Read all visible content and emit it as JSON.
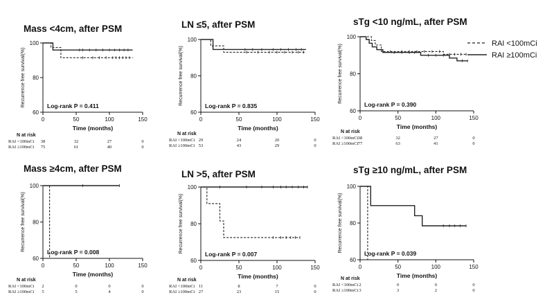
{
  "legend": {
    "entries": [
      {
        "label": "RAI <100mCi",
        "style": "dashed"
      },
      {
        "label": "RAI ≥100mCi",
        "style": "solid"
      }
    ],
    "placement": "top-right"
  },
  "chart_data": [
    {
      "type": "line",
      "title": "Mass <4cm, after PSM",
      "xlabel": "Time (months)",
      "ylabel": "Recurrence free survival(%)",
      "xlim": [
        0,
        150
      ],
      "ylim": [
        60,
        100
      ],
      "xticks": [
        0,
        50,
        100,
        150
      ],
      "yticks": [
        60,
        80,
        100
      ],
      "annotation": "Log-rank P = 0.411",
      "series": [
        {
          "name": "RAI <100mCi",
          "style": "dashed",
          "points": [
            [
              0,
              100
            ],
            [
              12,
              100
            ],
            [
              12,
              97.4
            ],
            [
              27,
              97.4
            ],
            [
              27,
              91.5
            ],
            [
              135,
              91.5
            ]
          ],
          "censored": [
            [
              60,
              91.5
            ],
            [
              75,
              91.5
            ],
            [
              85,
              91.5
            ],
            [
              95,
              91.5
            ],
            [
              105,
              91.5
            ],
            [
              110,
              91.5
            ],
            [
              115,
              91.5
            ],
            [
              120,
              91.5
            ],
            [
              125,
              91.5
            ],
            [
              130,
              91.5
            ]
          ]
        },
        {
          "name": "RAI ≥100mCi",
          "style": "solid",
          "points": [
            [
              0,
              100
            ],
            [
              15,
              100
            ],
            [
              15,
              95.9
            ],
            [
              135,
              95.9
            ]
          ],
          "censored": [
            [
              55,
              95.9
            ],
            [
              60,
              95.9
            ],
            [
              70,
              95.9
            ],
            [
              80,
              95.9
            ],
            [
              90,
              95.9
            ],
            [
              100,
              95.9
            ],
            [
              108,
              95.9
            ],
            [
              115,
              95.9
            ],
            [
              122,
              95.9
            ],
            [
              128,
              95.9
            ]
          ]
        }
      ],
      "risk_table": {
        "header": "N at risk",
        "rows": [
          {
            "label": "RAI <100mCi",
            "values": [
              "38",
              "32",
              "27",
              "0"
            ]
          },
          {
            "label": "RAI ≥100mCi",
            "values": [
              "75",
              "61",
              "40",
              "0"
            ]
          }
        ]
      }
    },
    {
      "type": "line",
      "title": "LN ≤5, after PSM",
      "xlabel": "Time (months)",
      "ylabel": "Recurrence free survival(%)",
      "xlim": [
        0,
        150
      ],
      "ylim": [
        60,
        100
      ],
      "xticks": [
        0,
        50,
        100,
        150
      ],
      "yticks": [
        60,
        80,
        100
      ],
      "annotation": "Log-rank P = 0.835",
      "series": [
        {
          "name": "RAI <100mCi",
          "style": "dashed",
          "points": [
            [
              0,
              100
            ],
            [
              13,
              100
            ],
            [
              13,
              96.5
            ],
            [
              30,
              96.5
            ],
            [
              30,
              93
            ],
            [
              138,
              93
            ]
          ],
          "censored": [
            [
              60,
              93
            ],
            [
              75,
              93
            ],
            [
              90,
              93
            ],
            [
              100,
              93
            ],
            [
              110,
              93
            ],
            [
              120,
              93
            ],
            [
              128,
              93
            ],
            [
              135,
              93
            ]
          ]
        },
        {
          "name": "RAI ≥100mCi",
          "style": "solid",
          "points": [
            [
              0,
              100
            ],
            [
              16,
              100
            ],
            [
              16,
              94.5
            ],
            [
              138,
              94.5
            ]
          ],
          "censored": [
            [
              58,
              94.5
            ],
            [
              68,
              94.5
            ],
            [
              80,
              94.5
            ],
            [
              95,
              94.5
            ],
            [
              105,
              94.5
            ],
            [
              115,
              94.5
            ],
            [
              125,
              94.5
            ],
            [
              132,
              94.5
            ]
          ]
        }
      ],
      "risk_table": {
        "header": "N at risk",
        "rows": [
          {
            "label": "RAI <100mCi",
            "values": [
              "29",
              "24",
              "20",
              "0"
            ]
          },
          {
            "label": "RAI ≥100mCi",
            "values": [
              "53",
              "43",
              "29",
              "0"
            ]
          }
        ]
      }
    },
    {
      "type": "line",
      "title": "sTg <10 ng/mL, after PSM",
      "xlabel": "Time (months)",
      "ylabel": "Recurrence free survival(%)",
      "xlim": [
        0,
        150
      ],
      "ylim": [
        60,
        100
      ],
      "xticks": [
        0,
        50,
        100,
        150
      ],
      "yticks": [
        60,
        80,
        100
      ],
      "annotation": "Log-rank P = 0.390",
      "series": [
        {
          "name": "RAI <100mCi",
          "style": "dashed",
          "points": [
            [
              0,
              100
            ],
            [
              15,
              100
            ],
            [
              15,
              98
            ],
            [
              20,
              98
            ],
            [
              20,
              95.5
            ],
            [
              28,
              95.5
            ],
            [
              28,
              92
            ],
            [
              110,
              92
            ],
            [
              110,
              90.5
            ],
            [
              140,
              90.5
            ]
          ],
          "censored": [
            [
              40,
              92
            ],
            [
              55,
              92
            ],
            [
              65,
              92
            ],
            [
              75,
              92
            ],
            [
              85,
              92
            ],
            [
              95,
              92
            ],
            [
              105,
              92
            ],
            [
              118,
              90.5
            ],
            [
              125,
              90.5
            ],
            [
              133,
              90.5
            ],
            [
              140,
              90.5
            ]
          ]
        },
        {
          "name": "RAI ≥100mCi",
          "style": "solid",
          "points": [
            [
              0,
              100
            ],
            [
              8,
              100
            ],
            [
              8,
              98.5
            ],
            [
              12,
              98.5
            ],
            [
              12,
              96.5
            ],
            [
              16,
              96.5
            ],
            [
              16,
              94.5
            ],
            [
              22,
              94.5
            ],
            [
              22,
              93
            ],
            [
              30,
              93
            ],
            [
              30,
              91.5
            ],
            [
              80,
              91.5
            ],
            [
              80,
              90
            ],
            [
              118,
              90
            ],
            [
              118,
              88.5
            ],
            [
              128,
              88.5
            ],
            [
              128,
              87
            ],
            [
              142,
              87
            ]
          ],
          "censored": [
            [
              45,
              91.5
            ],
            [
              55,
              91.5
            ],
            [
              65,
              91.5
            ],
            [
              72,
              91.5
            ],
            [
              90,
              90
            ],
            [
              100,
              90
            ],
            [
              110,
              90
            ],
            [
              135,
              87
            ],
            [
              142,
              87
            ]
          ]
        }
      ],
      "risk_table": {
        "header": "N at risk",
        "rows": [
          {
            "label": "RAI <100mCi",
            "values": [
              "38",
              "32",
              "27",
              "0"
            ]
          },
          {
            "label": "RAI ≥100mCi",
            "values": [
              "77",
              "63",
              "41",
              "0"
            ]
          }
        ]
      }
    },
    {
      "type": "line",
      "title": "Mass ≥4cm, after PSM",
      "xlabel": "Time (months)",
      "ylabel": "Recurrence free survival(%)",
      "xlim": [
        0,
        150
      ],
      "ylim": [
        60,
        100
      ],
      "xticks": [
        0,
        50,
        100,
        150
      ],
      "yticks": [
        60,
        80,
        100
      ],
      "annotation": "Log-rank P = 0.008",
      "series": [
        {
          "name": "RAI <100mCi",
          "style": "dashed",
          "points": [
            [
              0,
              100
            ],
            [
              10,
              100
            ],
            [
              10,
              60
            ]
          ],
          "censored": []
        },
        {
          "name": "RAI ≥100mCi",
          "style": "solid",
          "points": [
            [
              0,
              100
            ],
            [
              115,
              100
            ]
          ],
          "censored": [
            [
              60,
              100
            ],
            [
              115,
              100
            ]
          ]
        }
      ],
      "risk_table": {
        "header": "N at risk",
        "rows": [
          {
            "label": "RAI <100mCi",
            "values": [
              "2",
              "0",
              "0",
              "0"
            ]
          },
          {
            "label": "RAI ≥100mCi",
            "values": [
              "5",
              "5",
              "4",
              "0"
            ]
          }
        ]
      }
    },
    {
      "type": "line",
      "title": "LN >5, after PSM",
      "xlabel": "Time (months)",
      "ylabel": "Recurrence free survival(%)",
      "xlim": [
        0,
        150
      ],
      "ylim": [
        60,
        100
      ],
      "xticks": [
        0,
        50,
        100,
        150
      ],
      "yticks": [
        60,
        80,
        100
      ],
      "annotation": "Log-rank P = 0.007",
      "series": [
        {
          "name": "RAI <100mCi",
          "style": "dashed",
          "points": [
            [
              0,
              100
            ],
            [
              8,
              100
            ],
            [
              8,
              91
            ],
            [
              25,
              91
            ],
            [
              25,
              81.5
            ],
            [
              30,
              81.5
            ],
            [
              30,
              72.5
            ],
            [
              130,
              72.5
            ]
          ],
          "censored": [
            [
              95,
              72.5
            ],
            [
              105,
              72.5
            ],
            [
              112,
              72.5
            ],
            [
              118,
              72.5
            ],
            [
              124,
              72.5
            ],
            [
              130,
              72.5
            ]
          ]
        },
        {
          "name": "RAI ≥100mCi",
          "style": "solid",
          "points": [
            [
              0,
              100
            ],
            [
              140,
              100
            ]
          ],
          "censored": [
            [
              25,
              100
            ],
            [
              60,
              100
            ],
            [
              80,
              100
            ],
            [
              95,
              100
            ],
            [
              105,
              100
            ],
            [
              112,
              100
            ],
            [
              120,
              100
            ],
            [
              128,
              100
            ],
            [
              135,
              100
            ],
            [
              140,
              100
            ]
          ]
        }
      ],
      "risk_table": {
        "header": "N at risk",
        "rows": [
          {
            "label": "RAI <100mCi",
            "values": [
              "11",
              "8",
              "7",
              "0"
            ]
          },
          {
            "label": "RAI ≥100mCi",
            "values": [
              "27",
              "23",
              "15",
              "0"
            ]
          }
        ]
      }
    },
    {
      "type": "line",
      "title": "sTg ≥10 ng/mL, after PSM",
      "xlabel": "Time (months)",
      "ylabel": "Recurrence free survival(%)",
      "xlim": [
        0,
        150
      ],
      "ylim": [
        60,
        100
      ],
      "xticks": [
        0,
        50,
        100,
        150
      ],
      "yticks": [
        60,
        80,
        100
      ],
      "annotation": "Log-rank P = 0.039",
      "series": [
        {
          "name": "RAI <100mCi",
          "style": "dashed",
          "points": [
            [
              0,
              100
            ],
            [
              10,
              100
            ],
            [
              10,
              60
            ]
          ],
          "censored": []
        },
        {
          "name": "RAI ≥100mCi",
          "style": "solid",
          "points": [
            [
              0,
              100
            ],
            [
              14,
              100
            ],
            [
              14,
              89.5
            ],
            [
              72,
              89.5
            ],
            [
              72,
              84
            ],
            [
              82,
              84
            ],
            [
              82,
              78.5
            ],
            [
              140,
              78.5
            ]
          ],
          "censored": [
            [
              110,
              78.5
            ],
            [
              118,
              78.5
            ],
            [
              125,
              78.5
            ],
            [
              132,
              78.5
            ],
            [
              140,
              78.5
            ]
          ]
        }
      ],
      "risk_table": {
        "header": "N at risk",
        "rows": [
          {
            "label": "RAI <100mCi",
            "values": [
              "2",
              "0",
              "0",
              "0"
            ]
          },
          {
            "label": "RAI ≥100mCi",
            "values": [
              "3",
              "3",
              "2",
              "0"
            ]
          }
        ]
      }
    }
  ]
}
